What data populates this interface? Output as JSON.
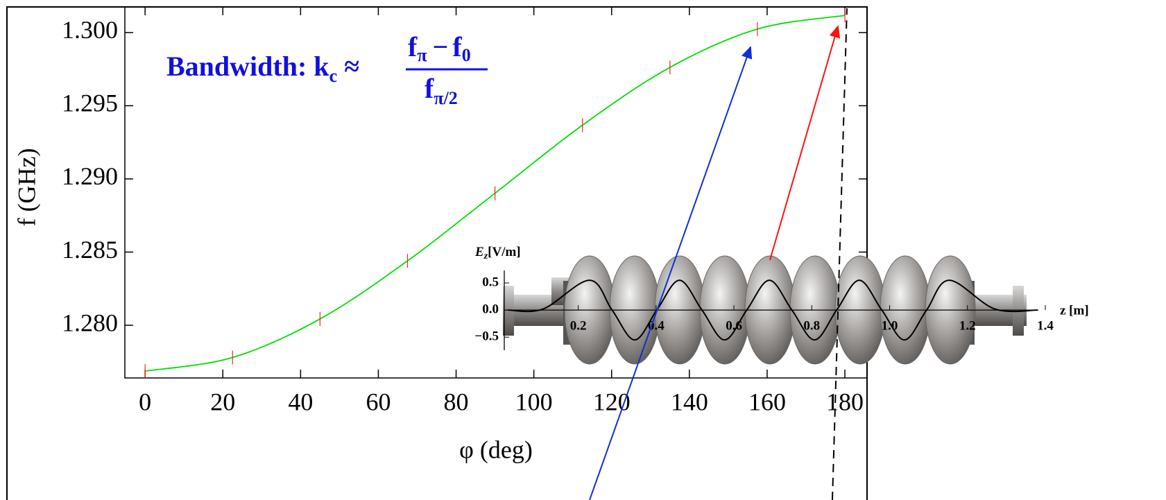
{
  "chart_data": [
    {
      "type": "line",
      "x_label": "φ (deg)",
      "y_label": "f (GHz)",
      "x": [
        0,
        22.5,
        45,
        67.5,
        90,
        112.5,
        135,
        157.5,
        180
      ],
      "series": [
        {
          "color": "#00e000",
          "marker_color": "#ff2020",
          "values": [
            1.27687,
            1.2778,
            1.28043,
            1.2844,
            1.28902,
            1.29367,
            1.29762,
            1.30024,
            1.30117
          ]
        }
      ],
      "xlim": [
        -5.2,
        185.7
      ],
      "ylim": [
        1.2764,
        1.30175
      ],
      "xticks": [
        0,
        20,
        40,
        60,
        80,
        100,
        120,
        140,
        160,
        180
      ],
      "yticks": [
        {
          "value": 1.28,
          "label": "1.280"
        },
        1.285,
        {
          "value": 1.29,
          "label": "1.290"
        },
        1.295,
        {
          "value": 1.3,
          "label": "1.300"
        }
      ],
      "annotation": {
        "lead": "Bandwidth: k",
        "lead_sub": "c",
        "approx": "≈",
        "num_a": "f",
        "num_a_sub": "π",
        "minus": "−",
        "num_b": "f",
        "num_b_sub": "0",
        "den": "f",
        "den_sub": "π/2"
      }
    },
    {
      "type": "line",
      "y_label": "E",
      "y_label_sub": "z",
      "y_label_unit": "[V/m]",
      "x_label": "z [m]",
      "x": [
        0.02,
        0.11,
        0.229,
        0.287,
        0.345,
        0.402,
        0.46,
        0.518,
        0.576,
        0.633,
        0.691,
        0.749,
        0.807,
        0.864,
        0.922,
        0.98,
        1.038,
        1.095,
        1.153,
        1.27,
        1.38
      ],
      "series": [
        {
          "color": "#000000",
          "values": [
            0,
            0.02,
            0.55,
            0,
            -0.55,
            0,
            0.55,
            0,
            -0.55,
            0,
            0.55,
            0,
            -0.55,
            0,
            0.55,
            0,
            -0.55,
            0,
            0.55,
            0.02,
            0
          ]
        }
      ],
      "xlim": [
        0.01,
        1.4
      ],
      "ylim": [
        -0.74,
        0.73
      ],
      "xticks": [
        0.2,
        0.4,
        0.6,
        0.8,
        {
          "value": 1,
          "label": "1.0"
        },
        1.2,
        1.4
      ],
      "yticks": [
        {
          "value": -0.5,
          "label": "−0.5"
        },
        {
          "value": 0,
          "label": "0.0"
        },
        0.5
      ]
    }
  ]
}
